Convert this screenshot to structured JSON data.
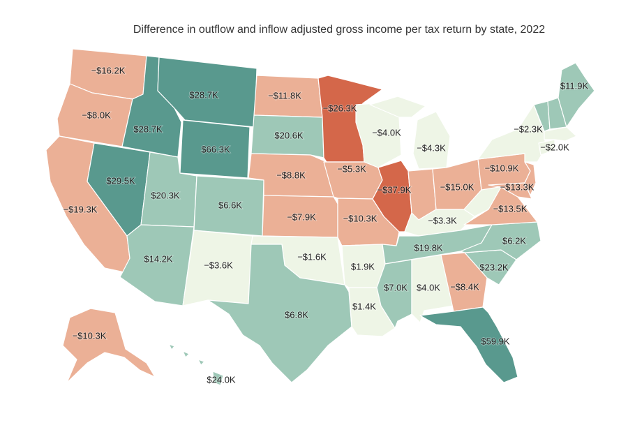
{
  "title": "Difference in outflow and inflow adjusted gross income per tax return by state, 2022",
  "colors": {
    "strong_negative": "#d4674a",
    "negative": "#ebb096",
    "near_zero": "#eef5e6",
    "positive": "#9ec8b7",
    "strong_positive": "#59998e"
  },
  "states": [
    {
      "code": "WA",
      "value": -16.2,
      "label": "−$16.2K"
    },
    {
      "code": "OR",
      "value": -8.0,
      "label": "−$8.0K"
    },
    {
      "code": "CA",
      "value": -19.3,
      "label": "−$19.3K"
    },
    {
      "code": "NV",
      "value": 29.5,
      "label": "$29.5K"
    },
    {
      "code": "ID",
      "value": 28.7,
      "label": "$28.7K"
    },
    {
      "code": "MT",
      "value": 28.7,
      "label": "$28.7K"
    },
    {
      "code": "WY",
      "value": 66.3,
      "label": "$66.3K"
    },
    {
      "code": "UT",
      "value": 20.3,
      "label": "$20.3K"
    },
    {
      "code": "CO",
      "value": 6.6,
      "label": "$6.6K"
    },
    {
      "code": "AZ",
      "value": 14.2,
      "label": "$14.2K"
    },
    {
      "code": "NM",
      "value": -3.6,
      "label": "−$3.6K"
    },
    {
      "code": "ND",
      "value": -11.8,
      "label": "−$11.8K"
    },
    {
      "code": "SD",
      "value": 20.6,
      "label": "$20.6K"
    },
    {
      "code": "NE",
      "value": -8.8,
      "label": "−$8.8K"
    },
    {
      "code": "KS",
      "value": -7.9,
      "label": "−$7.9K"
    },
    {
      "code": "OK",
      "value": -1.6,
      "label": "−$1.6K"
    },
    {
      "code": "TX",
      "value": 6.8,
      "label": "$6.8K"
    },
    {
      "code": "MN",
      "value": -26.3,
      "label": "−$26.3K"
    },
    {
      "code": "IA",
      "value": -5.3,
      "label": "−$5.3K"
    },
    {
      "code": "MO",
      "value": -10.3,
      "label": "−$10.3K"
    },
    {
      "code": "AR",
      "value": 1.9,
      "label": "$1.9K"
    },
    {
      "code": "LA",
      "value": 1.4,
      "label": "$1.4K"
    },
    {
      "code": "WI",
      "value": -4.0,
      "label": "−$4.0K"
    },
    {
      "code": "IL",
      "value": -37.9,
      "label": "−$37.9K"
    },
    {
      "code": "MI",
      "value": -4.3,
      "label": "−$4.3K"
    },
    {
      "code": "IN",
      "value": -15.0,
      "label": "−$15.0K"
    },
    {
      "code": "OH",
      "value": -15.0,
      "label": ""
    },
    {
      "code": "KY",
      "value": -3.3,
      "label": "−$3.3K"
    },
    {
      "code": "TN",
      "value": 19.8,
      "label": "$19.8K"
    },
    {
      "code": "MS",
      "value": 7.0,
      "label": "$7.0K"
    },
    {
      "code": "AL",
      "value": 4.0,
      "label": "$4.0K"
    },
    {
      "code": "GA",
      "value": -8.4,
      "label": "−$8.4K"
    },
    {
      "code": "FL",
      "value": 59.9,
      "label": "$59.9K"
    },
    {
      "code": "SC",
      "value": 23.2,
      "label": "$23.2K"
    },
    {
      "code": "NC",
      "value": 6.2,
      "label": "$6.2K"
    },
    {
      "code": "VA",
      "value": -13.5,
      "label": "−$13.5K"
    },
    {
      "code": "WV",
      "value": -3.3,
      "label": ""
    },
    {
      "code": "PA",
      "value": -10.9,
      "label": "−$10.9K"
    },
    {
      "code": "MD",
      "value": -13.3,
      "label": "−$13.3K"
    },
    {
      "code": "NJ",
      "value": -10.9,
      "label": ""
    },
    {
      "code": "NY",
      "value": -2.3,
      "label": "−$2.3K"
    },
    {
      "code": "CT",
      "value": -2.0,
      "label": "−$2.0K"
    },
    {
      "code": "MA",
      "value": -2.0,
      "label": ""
    },
    {
      "code": "VT",
      "value": 11.9,
      "label": ""
    },
    {
      "code": "NH",
      "value": 11.9,
      "label": ""
    },
    {
      "code": "ME",
      "value": 11.9,
      "label": "$11.9K"
    },
    {
      "code": "AK",
      "value": -10.3,
      "label": "−$10.3K"
    },
    {
      "code": "HI",
      "value": 24.0,
      "label": "$24.0K"
    }
  ]
}
